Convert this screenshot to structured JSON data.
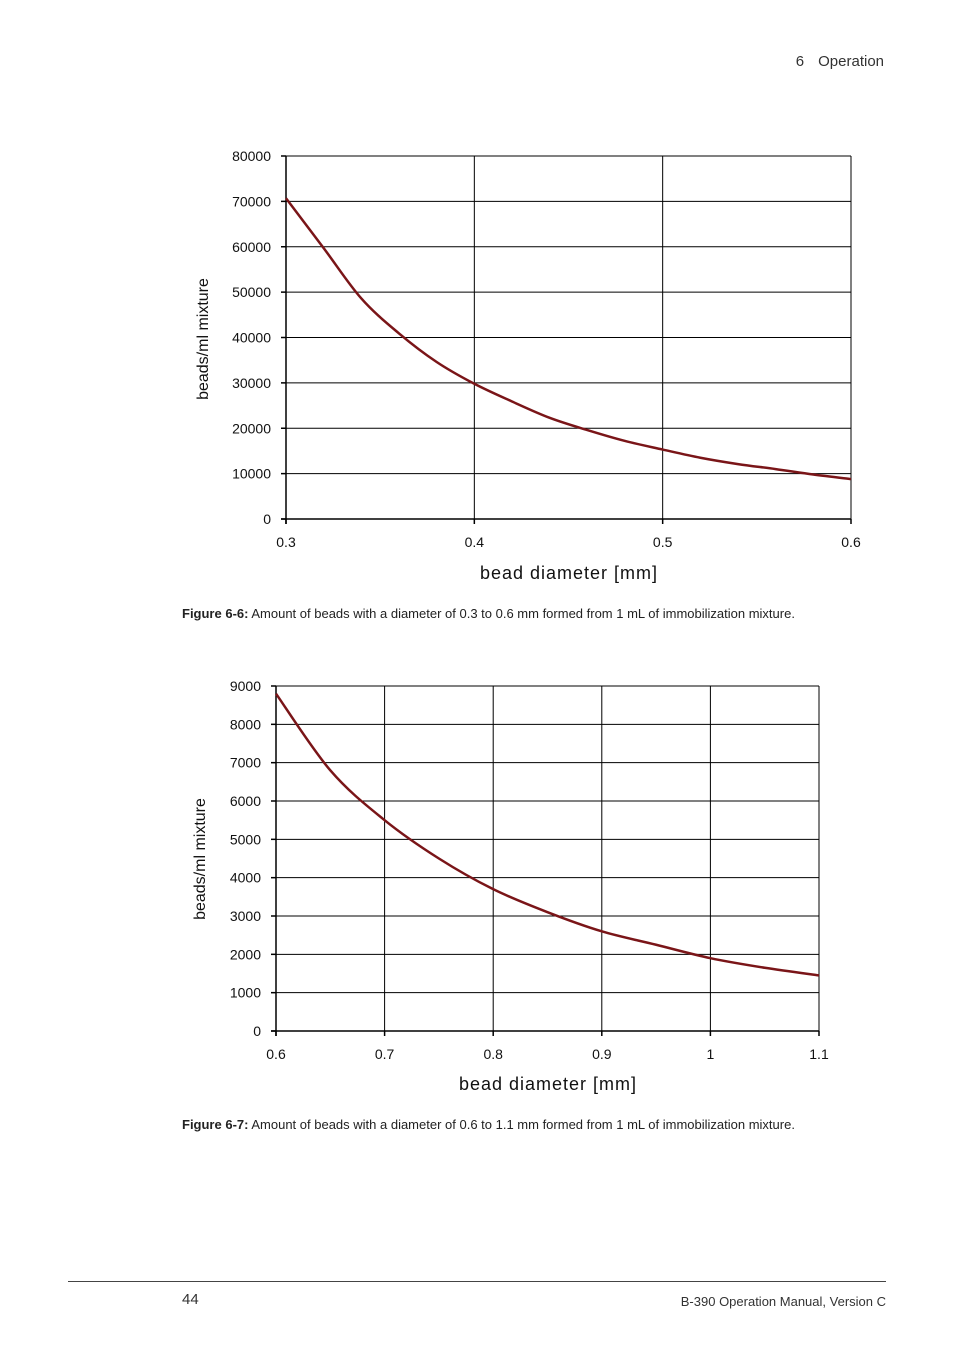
{
  "header": {
    "chapter_num": "6",
    "chapter_title": "Operation"
  },
  "captions": [
    {
      "label": "Figure 6-6:",
      "text": " Amount of beads with a diameter of 0.3 to 0.6 mm formed from 1 mL of immobilization mixture."
    },
    {
      "label": "Figure 6-7:",
      "text": " Amount of beads with a diameter of 0.6 to 1.1 mm formed from 1 mL of immobilization mixture."
    }
  ],
  "footer": {
    "page_number": "44",
    "manual": "B-390 Operation Manual, Version C"
  },
  "colors": {
    "curve": "#7a1518",
    "grid": "#000000"
  },
  "chart_data": [
    {
      "type": "line",
      "title": "",
      "xlabel": "bead diameter  [mm]",
      "ylabel": "beads/ml mixture",
      "xlim": [
        0.3,
        0.6
      ],
      "ylim": [
        0,
        80000
      ],
      "xticks": [
        0.3,
        0.4,
        0.5,
        0.6
      ],
      "xtick_labels": [
        "0.3",
        "0.4",
        "0.5",
        "0.6"
      ],
      "yticks": [
        0,
        10000,
        20000,
        30000,
        40000,
        50000,
        60000,
        70000,
        80000
      ],
      "ytick_labels": [
        "0",
        "10000",
        "20000",
        "30000",
        "40000",
        "50000",
        "60000",
        "70000",
        "80000"
      ],
      "grid": true,
      "series": [
        {
          "name": "beads/ml mixture",
          "x": [
            0.3,
            0.32,
            0.34,
            0.36,
            0.38,
            0.4,
            0.42,
            0.44,
            0.46,
            0.48,
            0.5,
            0.52,
            0.54,
            0.56,
            0.58,
            0.6
          ],
          "y": [
            70700,
            59700,
            48600,
            40900,
            34600,
            29800,
            25900,
            22300,
            19600,
            17200,
            15300,
            13500,
            12100,
            11000,
            9800,
            8800
          ]
        }
      ]
    },
    {
      "type": "line",
      "title": "",
      "xlabel": "bead diameter  [mm]",
      "ylabel": "beads/ml mixture",
      "xlim": [
        0.6,
        1.1
      ],
      "ylim": [
        0,
        9000
      ],
      "xticks": [
        0.6,
        0.7,
        0.8,
        0.9,
        1.0,
        1.1
      ],
      "xtick_labels": [
        "0.6",
        "0.7",
        "0.8",
        "0.9",
        "1",
        "1.1"
      ],
      "yticks": [
        0,
        1000,
        2000,
        3000,
        4000,
        5000,
        6000,
        7000,
        8000,
        9000
      ],
      "ytick_labels": [
        "0",
        "1000",
        "2000",
        "3000",
        "4000",
        "5000",
        "6000",
        "7000",
        "8000",
        "9000"
      ],
      "grid": true,
      "series": [
        {
          "name": "beads/ml mixture",
          "x": [
            0.6,
            0.65,
            0.7,
            0.75,
            0.8,
            0.85,
            0.9,
            0.95,
            1.0,
            1.05,
            1.1
          ],
          "y": [
            8800,
            6800,
            5500,
            4500,
            3700,
            3100,
            2600,
            2250,
            1900,
            1650,
            1450
          ]
        }
      ]
    }
  ]
}
